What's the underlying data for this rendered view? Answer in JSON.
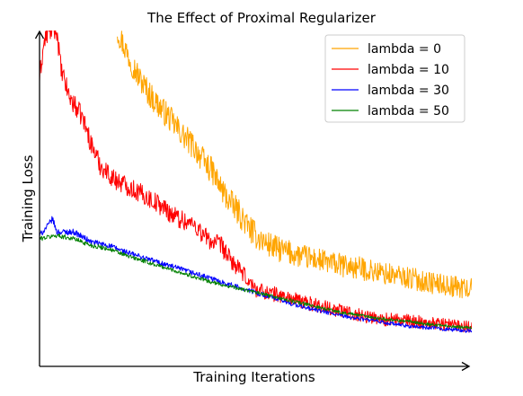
{
  "chart_data": {
    "type": "line",
    "title": "The Effect of Proximal Regularizer",
    "xlabel": "Training Iterations",
    "ylabel": "Training Loss",
    "xlim": [
      0,
      100
    ],
    "ylim": [
      0,
      100
    ],
    "grid": false,
    "legend_position": "top-right",
    "series": [
      {
        "name": "lambda = 0",
        "color": "#FFA500",
        "noise": 4.0,
        "points": [
          [
            18,
            100
          ],
          [
            20,
            94
          ],
          [
            23,
            86
          ],
          [
            26,
            80
          ],
          [
            30,
            74
          ],
          [
            33,
            69
          ],
          [
            36,
            65
          ],
          [
            38,
            61
          ],
          [
            40,
            58
          ],
          [
            42,
            53
          ],
          [
            44,
            49
          ],
          [
            46,
            46
          ],
          [
            48,
            42
          ],
          [
            50,
            39
          ],
          [
            52,
            37
          ],
          [
            55,
            35
          ],
          [
            60,
            33
          ],
          [
            65,
            31.5
          ],
          [
            70,
            30
          ],
          [
            75,
            29
          ],
          [
            80,
            27.5
          ],
          [
            85,
            26.5
          ],
          [
            90,
            25
          ],
          [
            95,
            24
          ],
          [
            100,
            23
          ]
        ]
      },
      {
        "name": "lambda = 10",
        "color": "#FF0000",
        "noise": 3.0,
        "points": [
          [
            0,
            86
          ],
          [
            1,
            96
          ],
          [
            2,
            100
          ],
          [
            4,
            100
          ],
          [
            5,
            88
          ],
          [
            7,
            80
          ],
          [
            10,
            74
          ],
          [
            12,
            66
          ],
          [
            14,
            60
          ],
          [
            17,
            56
          ],
          [
            20,
            54
          ],
          [
            24,
            51
          ],
          [
            28,
            48
          ],
          [
            31,
            45
          ],
          [
            34,
            43
          ],
          [
            36,
            42
          ],
          [
            38,
            39
          ],
          [
            40,
            37
          ],
          [
            42,
            36
          ],
          [
            44,
            32
          ],
          [
            46,
            29
          ],
          [
            48,
            26
          ],
          [
            50,
            23
          ],
          [
            53,
            22
          ],
          [
            56,
            21
          ],
          [
            60,
            19.5
          ],
          [
            65,
            18
          ],
          [
            70,
            16.5
          ],
          [
            75,
            15
          ],
          [
            80,
            14
          ],
          [
            85,
            13.5
          ],
          [
            90,
            13
          ],
          [
            95,
            12.5
          ],
          [
            100,
            12
          ]
        ]
      },
      {
        "name": "lambda = 30",
        "color": "#0000FF",
        "noise": 0.9,
        "points": [
          [
            0,
            39
          ],
          [
            2,
            42
          ],
          [
            3,
            44
          ],
          [
            4,
            40
          ],
          [
            8,
            40
          ],
          [
            12,
            37
          ],
          [
            16,
            36
          ],
          [
            20,
            34
          ],
          [
            25,
            32
          ],
          [
            30,
            30
          ],
          [
            35,
            28
          ],
          [
            40,
            26
          ],
          [
            45,
            24
          ],
          [
            50,
            22
          ],
          [
            55,
            20
          ],
          [
            60,
            18
          ],
          [
            65,
            16.5
          ],
          [
            70,
            15
          ],
          [
            75,
            14
          ],
          [
            80,
            13
          ],
          [
            85,
            12
          ],
          [
            90,
            11.5
          ],
          [
            95,
            11
          ],
          [
            100,
            10.5
          ]
        ]
      },
      {
        "name": "lambda = 50",
        "color": "#008000",
        "noise": 0.7,
        "points": [
          [
            0,
            38
          ],
          [
            4,
            39
          ],
          [
            8,
            38
          ],
          [
            12,
            36
          ],
          [
            16,
            35
          ],
          [
            20,
            33
          ],
          [
            25,
            31
          ],
          [
            30,
            29
          ],
          [
            35,
            27
          ],
          [
            40,
            25
          ],
          [
            45,
            23.5
          ],
          [
            50,
            22
          ],
          [
            55,
            20.5
          ],
          [
            60,
            19
          ],
          [
            65,
            17.5
          ],
          [
            70,
            16
          ],
          [
            75,
            15
          ],
          [
            80,
            14
          ],
          [
            85,
            13.5
          ],
          [
            90,
            12.5
          ],
          [
            95,
            12
          ],
          [
            100,
            11.5
          ]
        ]
      }
    ]
  }
}
